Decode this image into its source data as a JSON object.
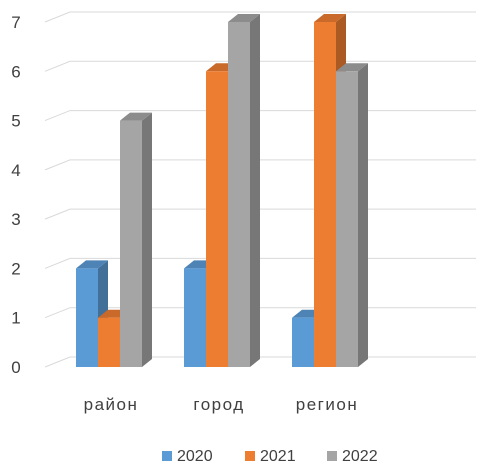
{
  "chart_data": {
    "type": "bar",
    "style": "3d-clustered-column",
    "categories": [
      "район",
      "город",
      "регион"
    ],
    "series": [
      {
        "name": "2020",
        "values": [
          2,
          2,
          1
        ],
        "color": "#5B9BD5"
      },
      {
        "name": "2021",
        "values": [
          1,
          6,
          7
        ],
        "color": "#ED7D31"
      },
      {
        "name": "2022",
        "values": [
          5,
          7,
          6
        ],
        "color": "#A5A5A5"
      }
    ],
    "ylim": [
      0,
      7
    ],
    "yticks": [
      "0",
      "1",
      "2",
      "3",
      "4",
      "5",
      "6",
      "7"
    ],
    "grid": true,
    "legend_position": "bottom",
    "title": "",
    "xlabel": "",
    "ylabel": ""
  }
}
